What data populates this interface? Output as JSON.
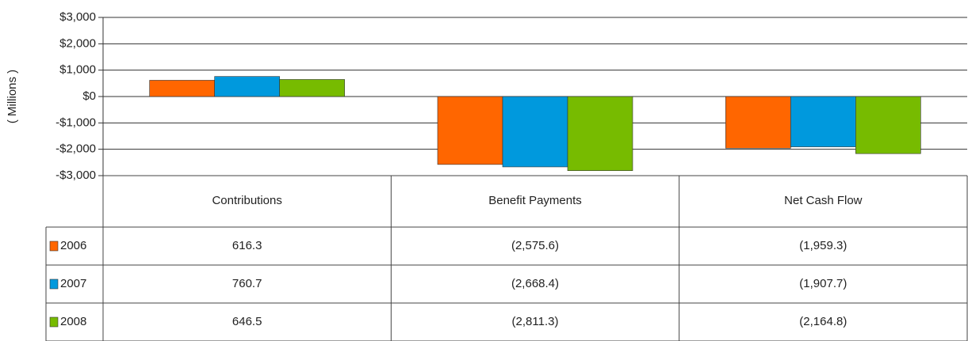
{
  "chart_data": {
    "type": "bar",
    "ylabel": "( Millions )",
    "categories": [
      "Contributions",
      "Benefit Payments",
      "Net Cash Flow"
    ],
    "series": [
      {
        "name": "2006",
        "color": "#ff6600",
        "values": [
          616.3,
          -2575.6,
          -1959.3
        ],
        "value_labels": [
          "616.3",
          "(2,575.6)",
          "(1,959.3)"
        ]
      },
      {
        "name": "2007",
        "color": "#0099dd",
        "values": [
          760.7,
          -2668.4,
          -1907.7
        ],
        "value_labels": [
          "760.7",
          "(2,668.4)",
          "(1,907.7)"
        ]
      },
      {
        "name": "2008",
        "color": "#77bb00",
        "values": [
          646.5,
          -2811.3,
          -2164.8
        ],
        "value_labels": [
          "646.5",
          "(2,811.3)",
          "(2,164.8)"
        ]
      }
    ],
    "ylim": [
      -3000,
      3000
    ],
    "yticks": [
      {
        "value": -3000,
        "label": "-$3,000"
      },
      {
        "value": -2000,
        "label": "-$2,000"
      },
      {
        "value": -1000,
        "label": "-$1,000"
      },
      {
        "value": 0,
        "label": "$0"
      },
      {
        "value": 1000,
        "label": "$1,000"
      },
      {
        "value": 2000,
        "label": "$2,000"
      },
      {
        "value": 3000,
        "label": "$3,000"
      }
    ],
    "grid": true
  }
}
